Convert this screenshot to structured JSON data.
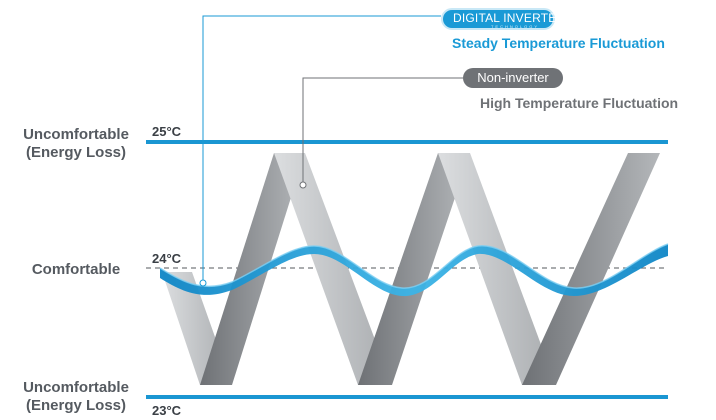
{
  "labels": {
    "top_zone": [
      "Uncomfortable",
      "(Energy Loss)"
    ],
    "mid_zone": "Comfortable",
    "bottom_zone": [
      "Uncomfortable",
      "(Energy Loss)"
    ]
  },
  "temperatures": {
    "high": "25°C",
    "mid": "24°C",
    "low": "23°C"
  },
  "legend": {
    "inverter_badge": "DIGITAL INVERTER",
    "inverter_badge_sub": "TECHNOLOGY",
    "inverter_desc": "Steady Temperature Fluctuation",
    "non_inverter_badge": "Non-inverter",
    "non_inverter_desc": "High Temperature Fluctuation"
  },
  "colors": {
    "inverter": "#1a9ad6",
    "non_inverter": "#8a8d91",
    "limit_line": "#1a96d2",
    "label_text": "#555a60"
  }
}
